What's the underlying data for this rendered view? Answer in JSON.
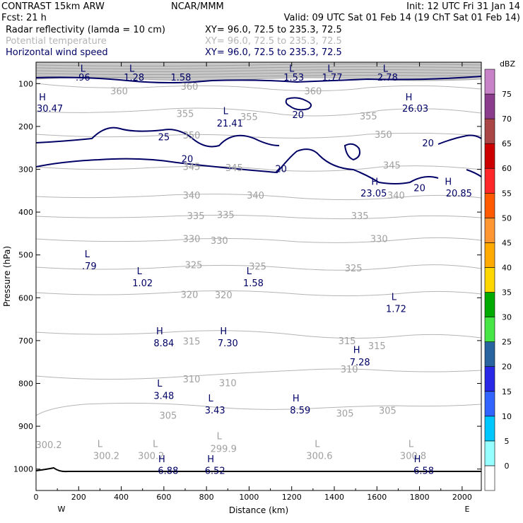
{
  "header": {
    "model": "CONTRAST 15km ARW",
    "center": "NCAR/MMM",
    "init": "Init: 12 UTC Fri 31 Jan 14",
    "fcst": "Fcst:   21 h",
    "valid": "Valid: 09 UTC Sat 01 Feb 14 (19 ChT Sat 01 Feb 14)",
    "fields": [
      {
        "name": "Radar reflectivity (lamda = 10 cm)",
        "xy": "XY=  96.0, 72.5 to 235.3, 72.5",
        "style": "black"
      },
      {
        "name": "Potential temperature",
        "xy": "XY=  96.0, 72.5 to 235.3, 72.5",
        "style": "gray"
      },
      {
        "name": "Horizontal wind speed",
        "xy": "XY=  96.0, 72.5 to 235.3, 72.5",
        "style": "blue"
      }
    ]
  },
  "chart_data": {
    "type": "cross-section",
    "xlabel": "Distance (km)",
    "ylabel": "Pressure (hPa)",
    "xlim": [
      0,
      2090
    ],
    "ylim": [
      1050,
      50
    ],
    "x_ticks": [
      0,
      200,
      400,
      600,
      800,
      1000,
      1200,
      1400,
      1600,
      1800,
      2000
    ],
    "y_ticks": [
      100,
      200,
      300,
      400,
      500,
      600,
      700,
      800,
      900,
      1000
    ],
    "x_end_labels": {
      "left": "W",
      "right": "E"
    },
    "colorbar": {
      "unit": "dBZ",
      "levels": [
        0,
        5,
        10,
        15,
        20,
        25,
        30,
        35,
        40,
        45,
        50,
        55,
        60,
        65,
        70,
        75
      ],
      "colors": [
        "#ffffff",
        "#96ffff",
        "#00c8ff",
        "#3264ff",
        "#2828e6",
        "#2864a0",
        "#46e646",
        "#00aa00",
        "#ffd700",
        "#ffaa00",
        "#ff9632",
        "#ff5a00",
        "#ff2828",
        "#cd0000",
        "#aa4646",
        "#8c3c8c",
        "#c882c8"
      ]
    },
    "theta_labels": [
      {
        "text": "360",
        "x": 390,
        "p": 117
      },
      {
        "text": "360",
        "x": 1300,
        "p": 117
      },
      {
        "text": "360",
        "x": 720,
        "p": 106
      },
      {
        "text": "355",
        "x": 700,
        "p": 170
      },
      {
        "text": "355",
        "x": 1000,
        "p": 177
      },
      {
        "text": "355",
        "x": 1560,
        "p": 175
      },
      {
        "text": "350",
        "x": 730,
        "p": 220
      },
      {
        "text": "350",
        "x": 1630,
        "p": 218
      },
      {
        "text": "345",
        "x": 730,
        "p": 293
      },
      {
        "text": "345",
        "x": 930,
        "p": 296
      },
      {
        "text": "345",
        "x": 1670,
        "p": 290
      },
      {
        "text": "340",
        "x": 730,
        "p": 360
      },
      {
        "text": "340",
        "x": 1030,
        "p": 360
      },
      {
        "text": "340",
        "x": 1690,
        "p": 360
      },
      {
        "text": "335",
        "x": 750,
        "p": 408
      },
      {
        "text": "335",
        "x": 890,
        "p": 406
      },
      {
        "text": "335",
        "x": 1520,
        "p": 408
      },
      {
        "text": "330",
        "x": 730,
        "p": 462
      },
      {
        "text": "330",
        "x": 860,
        "p": 466
      },
      {
        "text": "330",
        "x": 1610,
        "p": 462
      },
      {
        "text": "325",
        "x": 740,
        "p": 523
      },
      {
        "text": "325",
        "x": 1040,
        "p": 526
      },
      {
        "text": "325",
        "x": 1490,
        "p": 530
      },
      {
        "text": "320",
        "x": 720,
        "p": 592
      },
      {
        "text": "320",
        "x": 880,
        "p": 593
      },
      {
        "text": "315",
        "x": 730,
        "p": 701
      },
      {
        "text": "315",
        "x": 1460,
        "p": 700
      },
      {
        "text": "315",
        "x": 1600,
        "p": 712
      },
      {
        "text": "310",
        "x": 730,
        "p": 789
      },
      {
        "text": "310",
        "x": 900,
        "p": 798
      },
      {
        "text": "310",
        "x": 1470,
        "p": 766
      },
      {
        "text": "305",
        "x": 620,
        "p": 874
      },
      {
        "text": "305",
        "x": 1450,
        "p": 869
      },
      {
        "text": "305",
        "x": 1650,
        "p": 863
      },
      {
        "text": "300.2",
        "x": 60,
        "p": 943
      },
      {
        "text": "300.2",
        "x": 330,
        "p": 968
      },
      {
        "text": "300.2",
        "x": 540,
        "p": 968
      },
      {
        "text": "299.9",
        "x": 880,
        "p": 952
      },
      {
        "text": "300.6",
        "x": 1330,
        "p": 968
      },
      {
        "text": "300.8",
        "x": 1770,
        "p": 968
      }
    ],
    "theta_extrema": [
      {
        "text": "L",
        "x": 300,
        "p": 940
      },
      {
        "text": "L",
        "x": 560,
        "p": 940
      },
      {
        "text": "L",
        "x": 860,
        "p": 922
      },
      {
        "text": "L",
        "x": 1320,
        "p": 940
      },
      {
        "text": "L",
        "x": 1760,
        "p": 940
      }
    ],
    "wind_labels": [
      {
        "text": ".96",
        "x": 220,
        "p": 85
      },
      {
        "text": "1.28",
        "x": 460,
        "p": 85
      },
      {
        "text": "1.58",
        "x": 680,
        "p": 85
      },
      {
        "text": "1.53",
        "x": 1210,
        "p": 85
      },
      {
        "text": "1.77",
        "x": 1390,
        "p": 85
      },
      {
        "text": "2.78",
        "x": 1650,
        "p": 85
      },
      {
        "text": "30.47",
        "x": 65,
        "p": 157
      },
      {
        "text": "21.41",
        "x": 910,
        "p": 192
      },
      {
        "text": "26.03",
        "x": 1780,
        "p": 157
      },
      {
        "text": "23.05",
        "x": 1585,
        "p": 355
      },
      {
        "text": "20.85",
        "x": 1985,
        "p": 355
      },
      {
        "text": ".79",
        "x": 250,
        "p": 525
      },
      {
        "text": "1.02",
        "x": 500,
        "p": 565
      },
      {
        "text": "1.58",
        "x": 1020,
        "p": 565
      },
      {
        "text": "1.72",
        "x": 1690,
        "p": 625
      },
      {
        "text": "8.84",
        "x": 600,
        "p": 705
      },
      {
        "text": "7.30",
        "x": 900,
        "p": 705
      },
      {
        "text": "7.28",
        "x": 1520,
        "p": 750
      },
      {
        "text": "3.48",
        "x": 600,
        "p": 828
      },
      {
        "text": "3.43",
        "x": 840,
        "p": 862
      },
      {
        "text": "8.59",
        "x": 1240,
        "p": 862
      },
      {
        "text": "6.88",
        "x": 620,
        "p": 1003
      },
      {
        "text": "6.52",
        "x": 840,
        "p": 1003
      },
      {
        "text": "6.58",
        "x": 1820,
        "p": 1003
      }
    ],
    "wind_extrema": [
      {
        "text": "L",
        "x": 220,
        "p": 64
      },
      {
        "text": "L",
        "x": 450,
        "p": 64
      },
      {
        "text": "L",
        "x": 1200,
        "p": 64
      },
      {
        "text": "L",
        "x": 1380,
        "p": 64
      },
      {
        "text": "L",
        "x": 1640,
        "p": 64
      },
      {
        "text": "H",
        "x": 30,
        "p": 131
      },
      {
        "text": "L",
        "x": 890,
        "p": 163
      },
      {
        "text": "H",
        "x": 1750,
        "p": 131
      },
      {
        "text": "H",
        "x": 1590,
        "p": 328
      },
      {
        "text": "H",
        "x": 1935,
        "p": 328
      },
      {
        "text": "L",
        "x": 240,
        "p": 497
      },
      {
        "text": "L",
        "x": 485,
        "p": 537
      },
      {
        "text": "L",
        "x": 1000,
        "p": 537
      },
      {
        "text": "L",
        "x": 1680,
        "p": 597
      },
      {
        "text": "H",
        "x": 580,
        "p": 677
      },
      {
        "text": "H",
        "x": 880,
        "p": 677
      },
      {
        "text": "H",
        "x": 1505,
        "p": 721
      },
      {
        "text": "L",
        "x": 580,
        "p": 799
      },
      {
        "text": "L",
        "x": 820,
        "p": 834
      },
      {
        "text": "H",
        "x": 1220,
        "p": 834
      },
      {
        "text": "H",
        "x": 590,
        "p": 976
      },
      {
        "text": "H",
        "x": 820,
        "p": 976
      },
      {
        "text": "H",
        "x": 1790,
        "p": 976
      }
    ],
    "wind_contour_labels": [
      {
        "text": "25",
        "x": 600,
        "p": 224
      },
      {
        "text": "20",
        "x": 710,
        "p": 275
      },
      {
        "text": "20",
        "x": 1150,
        "p": 298
      },
      {
        "text": "20",
        "x": 1230,
        "p": 172
      },
      {
        "text": "20",
        "x": 1840,
        "p": 238
      },
      {
        "text": "20",
        "x": 1800,
        "p": 343
      }
    ]
  }
}
